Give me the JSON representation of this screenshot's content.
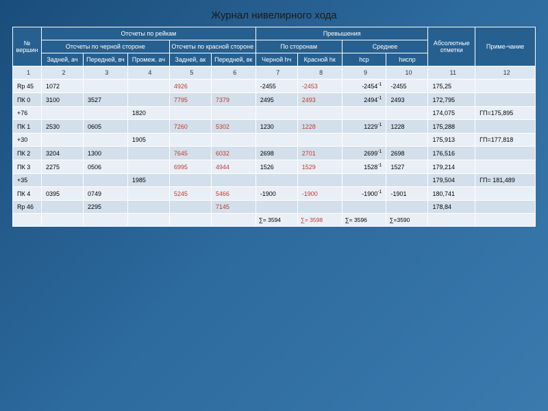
{
  "title": "Журнал нивелирного хода",
  "headers": {
    "h1": "№ вершин",
    "h2": "Отсчеты по рейкам",
    "h3": "Превышения",
    "h4": "Абсолютные отметки",
    "h5": "Приме-чание",
    "h2a": "Отсчеты по черной стороне",
    "h2b": "Отсчеты по красной стороне",
    "h3a": "По сторонам",
    "h3b": "Среднее",
    "c2": "Задней, ач",
    "c3": "Передней, вч",
    "c4": "Промеж. ач",
    "c5": "Задней, ак",
    "c6": "Передней, вк",
    "c7": "Черной hч",
    "c8": "Красной hк",
    "c9": "hср",
    "c10": "hиспр"
  },
  "colnums": [
    "1",
    "2",
    "3",
    "4",
    "5",
    "6",
    "7",
    "8",
    "9",
    "10",
    "11",
    "12"
  ],
  "rows": [
    {
      "cls": "odd",
      "c": [
        "Rp 45",
        "1072",
        "",
        "",
        {
          "t": "4926",
          "r": 1
        },
        "",
        "-2455",
        {
          "t": "-2453",
          "r": 1
        },
        {
          "t": "-2454",
          "sup": "-1"
        },
        "-2455",
        "175,25",
        ""
      ]
    },
    {
      "cls": "even",
      "c": [
        "ПК 0",
        "3100",
        "3527",
        "",
        {
          "t": "7795",
          "r": 1
        },
        {
          "t": "7379",
          "r": 1
        },
        "2495",
        {
          "t": "2493",
          "r": 1
        },
        {
          "t": "2494",
          "sup": "-1"
        },
        "2493",
        "172,795",
        ""
      ]
    },
    {
      "cls": "odd",
      "c": [
        "+76",
        "",
        "",
        "1820",
        "",
        "",
        "",
        "",
        "",
        "",
        "174,075",
        "ГП=175,895"
      ]
    },
    {
      "cls": "even",
      "c": [
        "ПК 1",
        "2530",
        "0605",
        "",
        {
          "t": "7260",
          "r": 1
        },
        {
          "t": "5302",
          "r": 1
        },
        "1230",
        {
          "t": "1228",
          "r": 1
        },
        {
          "t": "1229",
          "sup": "-1"
        },
        "1228",
        "175,288",
        ""
      ]
    },
    {
      "cls": "odd",
      "c": [
        "+30",
        "",
        "",
        "1905",
        "",
        "",
        "",
        "",
        "",
        "",
        "175,913",
        "ГП=177,818"
      ]
    },
    {
      "cls": "even",
      "c": [
        "ПК 2",
        "3204",
        "1300",
        "",
        {
          "t": "7645",
          "r": 1
        },
        {
          "t": "6032",
          "r": 1
        },
        "2698",
        {
          "t": "2701",
          "r": 1
        },
        {
          "t": "2699",
          "sup": "-1"
        },
        "2698",
        "176,516",
        ""
      ]
    },
    {
      "cls": "odd",
      "c": [
        "ПК 3",
        "2275",
        "0506",
        "",
        {
          "t": "6995",
          "r": 1
        },
        {
          "t": "4944",
          "r": 1
        },
        "1526",
        {
          "t": "1529",
          "r": 1
        },
        {
          "t": "1528",
          "sup": "-1"
        },
        "1527",
        "179,214",
        ""
      ]
    },
    {
      "cls": "even",
      "c": [
        "+35",
        "",
        "",
        "1985",
        "",
        "",
        "",
        "",
        "",
        "",
        "179,504",
        "ГП= 181,489"
      ]
    },
    {
      "cls": "odd",
      "c": [
        "ПК 4",
        "0395",
        "0749",
        "",
        {
          "t": "5245",
          "r": 1
        },
        {
          "t": "5466",
          "r": 1
        },
        "-1900",
        {
          "t": "-1900",
          "r": 1
        },
        {
          "t": "-1900",
          "sup": "-1"
        },
        "-1901",
        "180,741",
        ""
      ]
    },
    {
      "cls": "even",
      "c": [
        "Rp 46",
        "",
        "2295",
        "",
        "",
        {
          "t": "7145",
          "r": 1
        },
        "",
        "",
        "",
        "",
        "178,84",
        ""
      ]
    }
  ],
  "sums": {
    "s7": "∑= 3594",
    "s8": "∑= 3598",
    "s9": "∑= 3596",
    "s10": "∑=3590"
  },
  "style": {
    "header_bg": "#266091",
    "row_odd_bg": "#e9eff7",
    "row_even_bg": "#d3dfea",
    "colnum_bg": "#dbe6f0",
    "red": "#c0392b",
    "body_gradient": [
      "#1a4d7a",
      "#2d6a9e",
      "#3a7aad"
    ],
    "font_size_table": 9,
    "font_size_title": 15
  }
}
